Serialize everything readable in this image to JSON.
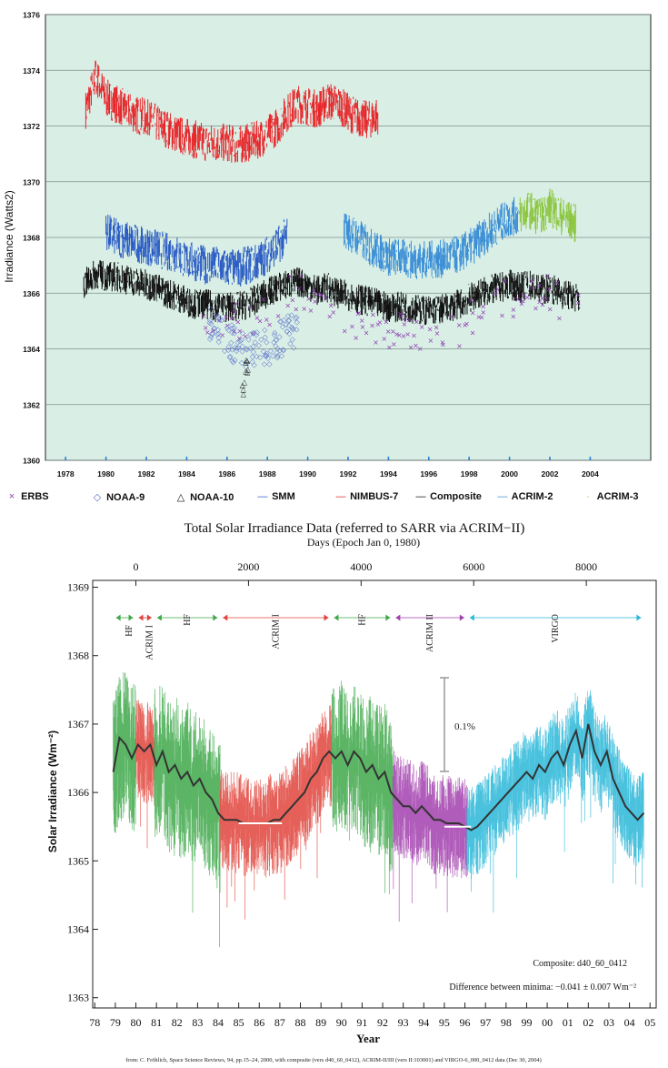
{
  "chart_data": [
    {
      "type": "line",
      "ylabel": "Irradiance (Watts2)",
      "xlim": [
        1977,
        2007
      ],
      "ylim": [
        1360,
        1376
      ],
      "yticks": [
        1360,
        1362,
        1364,
        1366,
        1368,
        1370,
        1372,
        1374,
        1376
      ],
      "xticks": [
        "1978",
        "1980",
        "1982",
        "1984",
        "1986",
        "1988",
        "1990",
        "1992",
        "1994",
        "1996",
        "1998",
        "2000",
        "2002",
        "2004"
      ],
      "grid": true,
      "background": "#d9efe6",
      "legend": [
        {
          "label": "ERBS",
          "symbol": "×"
        },
        {
          "label": "NOAA-9",
          "symbol": "◇"
        },
        {
          "label": "NOAA-10",
          "symbol": "△"
        },
        {
          "label": "SMM",
          "symbol": "—"
        },
        {
          "label": "NIMBUS-7",
          "symbol": "—"
        },
        {
          "label": "Composite",
          "symbol": "—"
        },
        {
          "label": "ACRIM-2",
          "symbol": "—"
        },
        {
          "label": "ACRIM-3",
          "symbol": "·"
        }
      ],
      "series": [
        {
          "name": "NIMBUS-7",
          "color": "#e8262a",
          "x": [
            1979.0,
            1979.5,
            1980,
            1980.5,
            1981,
            1981.5,
            1982,
            1982.5,
            1983,
            1983.5,
            1984,
            1984.5,
            1985,
            1985.5,
            1986,
            1986.5,
            1987,
            1987.5,
            1988,
            1988.5,
            1989,
            1989.5,
            1990,
            1990.5,
            1991,
            1991.5,
            1992,
            1992.5,
            1993,
            1993.5
          ],
          "y": [
            1372.6,
            1373.8,
            1373.0,
            1372.8,
            1372.6,
            1372.4,
            1372.3,
            1372.1,
            1371.9,
            1371.7,
            1371.6,
            1371.5,
            1371.4,
            1371.4,
            1371.4,
            1371.3,
            1371.4,
            1371.5,
            1371.7,
            1372.0,
            1372.5,
            1372.8,
            1372.7,
            1372.6,
            1372.9,
            1372.8,
            1372.5,
            1372.3,
            1372.2,
            1372.4
          ]
        },
        {
          "name": "SMM",
          "color": "#2a5cc4",
          "x": [
            1980,
            1980.5,
            1981,
            1981.5,
            1982,
            1982.5,
            1983,
            1983.5,
            1984,
            1984.5,
            1985,
            1985.5,
            1986,
            1986.5,
            1987,
            1987.5,
            1988,
            1988.5,
            1989
          ],
          "y": [
            1368.2,
            1368.0,
            1367.9,
            1367.8,
            1367.7,
            1367.6,
            1367.5,
            1367.4,
            1367.2,
            1367.1,
            1367.0,
            1367.0,
            1366.9,
            1366.9,
            1367.0,
            1367.1,
            1367.4,
            1367.7,
            1368.1
          ]
        },
        {
          "name": "ACRIM-2",
          "color": "#3b8fd6",
          "x": [
            1991.8,
            1992.5,
            1993,
            1993.5,
            1994,
            1994.5,
            1995,
            1995.5,
            1996,
            1996.5,
            1997,
            1997.5,
            1998,
            1998.5,
            1999,
            1999.5,
            2000,
            2000.5
          ],
          "y": [
            1368.3,
            1368.0,
            1367.7,
            1367.5,
            1367.3,
            1367.3,
            1367.2,
            1367.2,
            1367.2,
            1367.2,
            1367.3,
            1367.4,
            1367.6,
            1367.9,
            1368.2,
            1368.5,
            1368.7,
            1368.8
          ]
        },
        {
          "name": "ACRIM-3",
          "color": "#8cc63f",
          "x": [
            2000.5,
            2001,
            2001.5,
            2002,
            2002.5,
            2003,
            2003.3
          ],
          "y": [
            1368.8,
            1369.0,
            1368.7,
            1369.1,
            1368.8,
            1368.6,
            1368.5
          ]
        },
        {
          "name": "Composite",
          "color": "#111111",
          "x": [
            1978.9,
            1979.5,
            1980,
            1980.5,
            1981,
            1981.5,
            1982,
            1982.5,
            1983,
            1983.5,
            1984,
            1984.5,
            1985,
            1985.5,
            1986,
            1986.5,
            1987,
            1987.5,
            1988,
            1988.5,
            1989,
            1989.5,
            1990,
            1990.5,
            1991,
            1991.5,
            1992,
            1992.5,
            1993,
            1993.5,
            1994,
            1994.5,
            1995,
            1995.5,
            1996,
            1996.5,
            1997,
            1997.5,
            1998,
            1998.5,
            1999,
            1999.5,
            2000,
            2000.5,
            2001,
            2001.5,
            2002,
            2002.5,
            2003,
            2003.5
          ],
          "y": [
            1366.3,
            1366.7,
            1366.6,
            1366.6,
            1366.5,
            1366.4,
            1366.3,
            1366.2,
            1366.0,
            1365.9,
            1365.7,
            1365.6,
            1365.6,
            1365.5,
            1365.5,
            1365.5,
            1365.6,
            1365.8,
            1366.0,
            1366.2,
            1366.3,
            1366.4,
            1366.3,
            1366.1,
            1366.2,
            1366.0,
            1365.9,
            1365.8,
            1365.7,
            1365.6,
            1365.5,
            1365.5,
            1365.5,
            1365.4,
            1365.4,
            1365.4,
            1365.5,
            1365.6,
            1365.8,
            1366.0,
            1366.1,
            1366.2,
            1366.3,
            1366.2,
            1366.3,
            1366.1,
            1366.2,
            1366.0,
            1365.9,
            1365.8
          ]
        },
        {
          "name": "ERBS",
          "color": "#8e3fb0",
          "x": [
            1984.8,
            1985.5,
            1986,
            1986.5,
            1987,
            1987.5,
            1988,
            1988.5,
            1989,
            1989.5,
            1990,
            1990.5,
            1991,
            1991.5,
            1992,
            1992.5,
            1993,
            1993.5,
            1994,
            1994.5,
            1995,
            1995.5,
            1996,
            1996.5,
            1997,
            1997.5,
            1998,
            1998.5,
            1999,
            1999.5,
            2000,
            2000.5,
            2001,
            2001.5,
            2002,
            2002.5,
            2003,
            2003.5
          ],
          "y": [
            1365.3,
            1365.2,
            1365.1,
            1365.0,
            1365.0,
            1365.1,
            1365.3,
            1365.6,
            1365.9,
            1366.0,
            1365.8,
            1365.5,
            1365.6,
            1365.3,
            1365.1,
            1365.0,
            1364.8,
            1364.7,
            1364.7,
            1364.6,
            1364.6,
            1364.6,
            1364.6,
            1364.6,
            1364.7,
            1364.8,
            1365.0,
            1365.3,
            1365.6,
            1365.8,
            1365.9,
            1365.8,
            1366.0,
            1365.8,
            1366.0,
            1365.8,
            1365.7,
            1365.6
          ]
        },
        {
          "name": "NOAA-9",
          "color": "#5b6fc9",
          "x": [
            1985.0,
            1985.5,
            1986,
            1986.5,
            1987,
            1987.5,
            1988,
            1988.5,
            1989,
            1989.5
          ],
          "y": [
            1364.9,
            1364.6,
            1364.3,
            1364.1,
            1364.0,
            1364.0,
            1364.1,
            1364.3,
            1364.6,
            1364.8
          ]
        },
        {
          "name": "NOAA-10",
          "color": "#111111",
          "x": [
            1986.7,
            1986.8,
            1986.9,
            1987.0,
            1987.1,
            1986.75,
            1986.95,
            1987.05
          ],
          "y": [
            1362.5,
            1362.8,
            1363.1,
            1363.4,
            1363.6,
            1363.3,
            1363.5,
            1363.2
          ]
        }
      ]
    },
    {
      "type": "line",
      "title": "Total Solar Irradiance Data (referred to SARR via ACRIM−II)",
      "x2label": "Days (Epoch Jan 0, 1980)",
      "x2ticks": [
        "0",
        "2000",
        "4000",
        "6000",
        "8000"
      ],
      "xlabel": "Year",
      "ylabel": "Solar Irradiance (Wm⁻²)",
      "xticks": [
        "78",
        "79",
        "80",
        "81",
        "82",
        "83",
        "84",
        "85",
        "86",
        "87",
        "88",
        "89",
        "90",
        "91",
        "92",
        "93",
        "94",
        "95",
        "96",
        "97",
        "98",
        "99",
        "00",
        "01",
        "02",
        "03",
        "04",
        "05"
      ],
      "yticks": [
        1363,
        1364,
        1365,
        1366,
        1367,
        1368,
        1369
      ],
      "xlim": [
        1977.9,
        2005.3
      ],
      "ylim": [
        1362.85,
        1369.1
      ],
      "scale_bar_label": "0.1%",
      "annotations": [
        "Composite: d40_60_0412",
        "Difference between minima: −0.041 ± 0.007 Wm⁻²"
      ],
      "instrument_labels": [
        "HF",
        "ACRIM I",
        "HF",
        "ACRIM I",
        "HF",
        "ACRIM II",
        "VIRGO"
      ],
      "segments": [
        {
          "name": "HF",
          "color": "#3ea84a",
          "start": 1978.9,
          "end": 1980.0
        },
        {
          "name": "ACRIM I",
          "color": "#e0443c",
          "start": 1980.0,
          "end": 1980.9
        },
        {
          "name": "HF",
          "color": "#3ea84a",
          "start": 1980.9,
          "end": 1984.1
        },
        {
          "name": "ACRIM I",
          "color": "#e0443c",
          "start": 1984.1,
          "end": 1989.5
        },
        {
          "name": "HF",
          "color": "#3ea84a",
          "start": 1989.5,
          "end": 1992.5
        },
        {
          "name": "ACRIM II",
          "color": "#a23fae",
          "start": 1992.5,
          "end": 1996.1
        },
        {
          "name": "VIRGO",
          "color": "#2ab7d8",
          "start": 1996.1,
          "end": 2004.7
        }
      ],
      "series": [
        {
          "name": "Composite",
          "color": "#333333",
          "x": [
            1978.9,
            1979.2,
            1979.5,
            1979.8,
            1980.1,
            1980.4,
            1980.7,
            1981.0,
            1981.3,
            1981.6,
            1981.9,
            1982.2,
            1982.5,
            1982.8,
            1983.1,
            1983.4,
            1983.7,
            1984.0,
            1984.3,
            1984.6,
            1984.9,
            1985.2,
            1985.5,
            1985.8,
            1986.1,
            1986.4,
            1986.7,
            1987.0,
            1987.3,
            1987.6,
            1987.9,
            1988.2,
            1988.5,
            1988.8,
            1989.1,
            1989.4,
            1989.7,
            1990.0,
            1990.3,
            1990.6,
            1990.9,
            1991.2,
            1991.5,
            1991.8,
            1992.1,
            1992.4,
            1992.7,
            1993.0,
            1993.3,
            1993.6,
            1993.9,
            1994.2,
            1994.5,
            1994.8,
            1995.1,
            1995.4,
            1995.7,
            1996.0,
            1996.3,
            1996.6,
            1996.9,
            1997.2,
            1997.5,
            1997.8,
            1998.1,
            1998.4,
            1998.7,
            1999.0,
            1999.3,
            1999.6,
            1999.9,
            2000.2,
            2000.5,
            2000.8,
            2001.1,
            2001.4,
            2001.7,
            2002.0,
            2002.3,
            2002.6,
            2002.9,
            2003.2,
            2003.5,
            2003.8,
            2004.1,
            2004.4,
            2004.7
          ],
          "y": [
            1366.3,
            1366.8,
            1366.7,
            1366.5,
            1366.7,
            1366.6,
            1366.7,
            1366.4,
            1366.6,
            1366.3,
            1366.4,
            1366.2,
            1366.3,
            1366.1,
            1366.2,
            1366.0,
            1365.9,
            1365.7,
            1365.6,
            1365.6,
            1365.6,
            1365.55,
            1365.55,
            1365.55,
            1365.55,
            1365.55,
            1365.6,
            1365.6,
            1365.7,
            1365.8,
            1365.9,
            1366.0,
            1366.2,
            1366.3,
            1366.5,
            1366.6,
            1366.5,
            1366.6,
            1366.4,
            1366.6,
            1366.5,
            1366.3,
            1366.4,
            1366.2,
            1366.3,
            1366.0,
            1365.9,
            1365.8,
            1365.8,
            1365.7,
            1365.8,
            1365.7,
            1365.6,
            1365.6,
            1365.55,
            1365.55,
            1365.55,
            1365.5,
            1365.45,
            1365.5,
            1365.6,
            1365.7,
            1365.8,
            1365.9,
            1366.0,
            1366.1,
            1366.2,
            1366.3,
            1366.2,
            1366.4,
            1366.3,
            1366.5,
            1366.6,
            1366.4,
            1366.7,
            1366.9,
            1366.5,
            1367.0,
            1366.6,
            1366.4,
            1366.6,
            1366.2,
            1366.0,
            1365.8,
            1365.7,
            1365.6,
            1365.7
          ]
        }
      ],
      "minima_lines": [
        {
          "x": [
            1985.0,
            1987.1
          ],
          "y": 1365.55
        },
        {
          "x": [
            1995.0,
            1996.3
          ],
          "y": 1365.5
        }
      ],
      "source_note": "from: C. Fröhlich, Space Science Reviews, 94, pp.15–24, 2000, with composite (vers d40_60_0412), ACRIM-II/III (vers II:103001) and VIRGO-6_000_0412 data (Dec 30, 2004)"
    }
  ]
}
